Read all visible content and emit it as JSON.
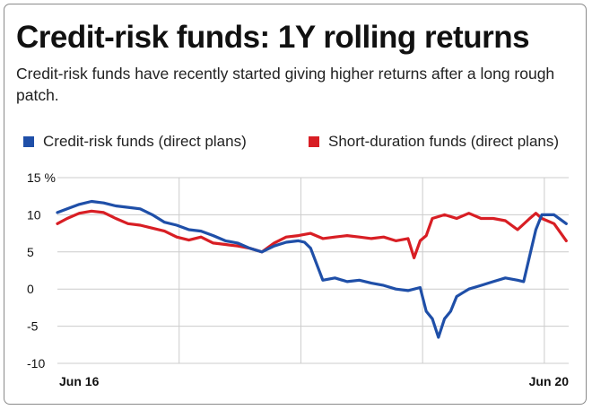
{
  "title": "Credit-risk funds: 1Y rolling returns",
  "subtitle": "Credit-risk funds have recently started giving higher returns after a long rough patch.",
  "colors": {
    "credit": "#1f4fa8",
    "short": "#d81e24",
    "grid": "#cccccc",
    "frame": "#8a8a8a"
  },
  "chart_data": {
    "type": "line",
    "title": "Credit-risk funds: 1Y rolling returns",
    "subtitle": "Credit-risk funds have recently started giving higher returns after a long rough patch.",
    "x_tick_labels": [
      "Jun 16",
      "Jun 20"
    ],
    "y_tick_labels": [
      "15 %",
      "10",
      "5",
      "0",
      "-5",
      "-10"
    ],
    "y_ticks": [
      15,
      10,
      5,
      0,
      -5,
      -10
    ],
    "ylim": [
      -10,
      15
    ],
    "xlim": [
      2016.42,
      2020.62
    ],
    "grid": true,
    "legend_position": "top",
    "series": [
      {
        "name": "Credit-risk funds (direct plans)",
        "color": "#1f4fa8",
        "x": [
          2016.42,
          2016.5,
          2016.6,
          2016.7,
          2016.8,
          2016.9,
          2017.0,
          2017.1,
          2017.2,
          2017.3,
          2017.4,
          2017.5,
          2017.6,
          2017.7,
          2017.8,
          2017.9,
          2018.0,
          2018.1,
          2018.2,
          2018.3,
          2018.4,
          2018.45,
          2018.5,
          2018.6,
          2018.7,
          2018.8,
          2018.9,
          2019.0,
          2019.1,
          2019.2,
          2019.3,
          2019.4,
          2019.45,
          2019.5,
          2019.55,
          2019.6,
          2019.65,
          2019.7,
          2019.75,
          2019.8,
          2019.9,
          2020.0,
          2020.1,
          2020.2,
          2020.25,
          2020.3,
          2020.35,
          2020.4,
          2020.5,
          2020.6
        ],
        "y": [
          10.3,
          10.8,
          11.4,
          11.8,
          11.6,
          11.2,
          11.0,
          10.8,
          10.0,
          9.0,
          8.6,
          8.0,
          7.8,
          7.2,
          6.5,
          6.2,
          5.5,
          5.0,
          5.8,
          6.3,
          6.5,
          6.3,
          5.5,
          1.2,
          1.5,
          1.0,
          1.2,
          0.8,
          0.5,
          0.0,
          -0.2,
          0.2,
          -3.0,
          -4.0,
          -6.5,
          -4.0,
          -3.0,
          -1.0,
          -0.5,
          0.0,
          0.5,
          1.0,
          1.5,
          1.2,
          1.0,
          4.5,
          8.0,
          10.0,
          10.0,
          8.8
        ]
      },
      {
        "name": "Short-duration funds (direct plans)",
        "color": "#d81e24",
        "x": [
          2016.42,
          2016.5,
          2016.6,
          2016.7,
          2016.8,
          2016.9,
          2017.0,
          2017.1,
          2017.2,
          2017.3,
          2017.4,
          2017.5,
          2017.6,
          2017.7,
          2017.8,
          2017.9,
          2018.0,
          2018.1,
          2018.2,
          2018.3,
          2018.4,
          2018.5,
          2018.6,
          2018.7,
          2018.8,
          2018.9,
          2019.0,
          2019.1,
          2019.2,
          2019.3,
          2019.35,
          2019.4,
          2019.45,
          2019.5,
          2019.6,
          2019.7,
          2019.8,
          2019.9,
          2020.0,
          2020.1,
          2020.2,
          2020.3,
          2020.35,
          2020.4,
          2020.5,
          2020.6
        ],
        "y": [
          8.8,
          9.5,
          10.2,
          10.5,
          10.3,
          9.5,
          8.8,
          8.6,
          8.2,
          7.8,
          7.0,
          6.6,
          7.0,
          6.2,
          6.0,
          5.8,
          5.5,
          5.0,
          6.2,
          7.0,
          7.2,
          7.5,
          6.8,
          7.0,
          7.2,
          7.0,
          6.8,
          7.0,
          6.5,
          6.8,
          4.2,
          6.5,
          7.2,
          9.5,
          10.0,
          9.5,
          10.2,
          9.5,
          9.5,
          9.2,
          8.0,
          9.5,
          10.2,
          9.5,
          8.8,
          6.5
        ]
      }
    ]
  }
}
